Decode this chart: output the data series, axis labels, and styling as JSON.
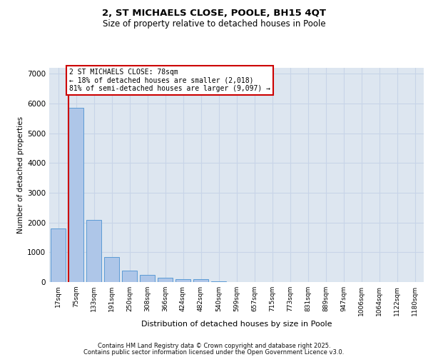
{
  "title_line1": "2, ST MICHAELS CLOSE, POOLE, BH15 4QT",
  "title_line2": "Size of property relative to detached houses in Poole",
  "xlabel": "Distribution of detached houses by size in Poole",
  "ylabel": "Number of detached properties",
  "categories": [
    "17sqm",
    "75sqm",
    "133sqm",
    "191sqm",
    "250sqm",
    "308sqm",
    "366sqm",
    "424sqm",
    "482sqm",
    "540sqm",
    "599sqm",
    "657sqm",
    "715sqm",
    "773sqm",
    "831sqm",
    "889sqm",
    "947sqm",
    "1006sqm",
    "1064sqm",
    "1122sqm",
    "1180sqm"
  ],
  "values": [
    1800,
    5850,
    2080,
    830,
    380,
    240,
    140,
    90,
    90,
    30,
    0,
    0,
    0,
    0,
    0,
    0,
    0,
    0,
    0,
    0,
    0
  ],
  "bar_color": "#aec6e8",
  "bar_edge_color": "#5b9bd5",
  "vline_color": "#cc0000",
  "annotation_box_text": "2 ST MICHAELS CLOSE: 78sqm\n← 18% of detached houses are smaller (2,018)\n81% of semi-detached houses are larger (9,097) →",
  "annotation_box_edgecolor": "#cc0000",
  "ylim": [
    0,
    7200
  ],
  "yticks": [
    0,
    1000,
    2000,
    3000,
    4000,
    5000,
    6000,
    7000
  ],
  "grid_color": "#c8d4e8",
  "plot_bg_color": "#dde6f0",
  "footer_line1": "Contains HM Land Registry data © Crown copyright and database right 2025.",
  "footer_line2": "Contains public sector information licensed under the Open Government Licence v3.0."
}
